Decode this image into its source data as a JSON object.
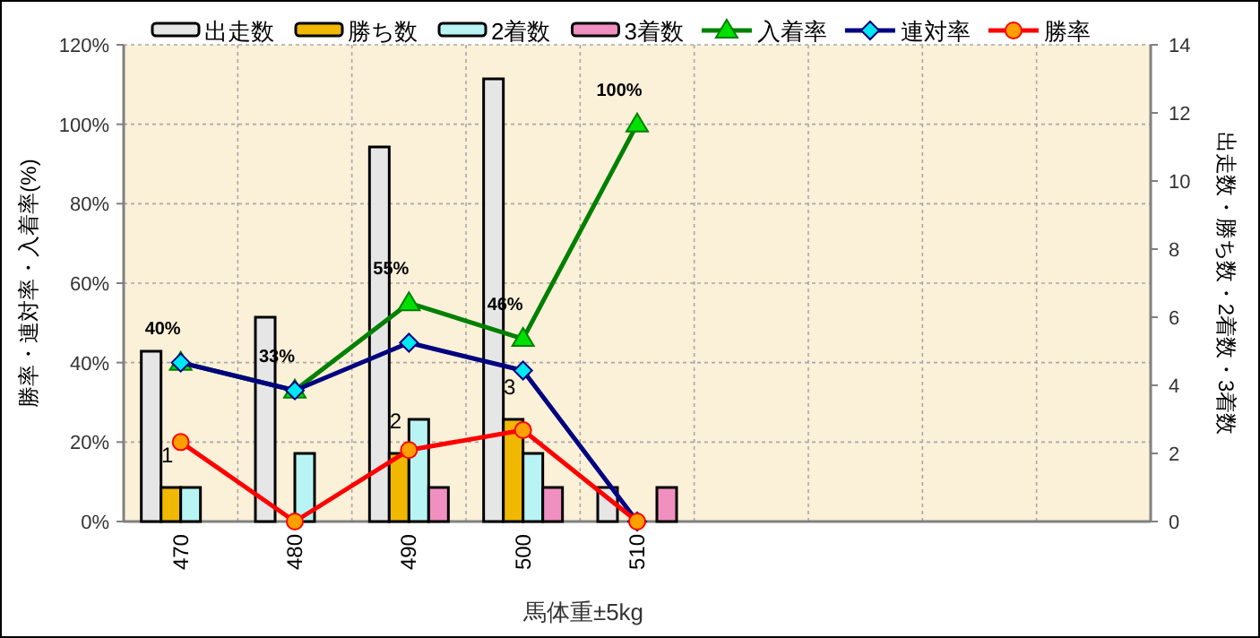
{
  "chart_data": {
    "type": "bar",
    "xlabel": "馬体重±5kg",
    "ylabel": "勝率・連対率・入着率(%)",
    "y2label": "出走数・勝ち数・2着数・3着数",
    "categories": [
      "470",
      "480",
      "490",
      "500",
      "510",
      null,
      null,
      null,
      null
    ],
    "ylim": [
      0,
      120
    ],
    "yticks": [
      {
        "value": 0,
        "label": "0%"
      },
      {
        "value": 20,
        "label": "20%"
      },
      {
        "value": 40,
        "label": "40%"
      },
      {
        "value": 60,
        "label": "60%"
      },
      {
        "value": 80,
        "label": "80%"
      },
      {
        "value": 100,
        "label": "100%"
      },
      {
        "value": 120,
        "label": "120%"
      }
    ],
    "y2lim": [
      0,
      14
    ],
    "y2ticks": [
      0,
      2,
      4,
      6,
      8,
      10,
      12,
      14
    ],
    "grid": true,
    "legend": "top",
    "series": [
      {
        "name": "出走数",
        "axis": "y2",
        "color": "#e6e6e6",
        "values": [
          5,
          6,
          11,
          13,
          1,
          null,
          null,
          null,
          null
        ]
      },
      {
        "name": "勝ち数",
        "axis": "y2",
        "color": "#f0b800",
        "values": [
          1,
          0,
          2,
          3,
          0,
          null,
          null,
          null,
          null
        ],
        "value_labels": [
          "1",
          null,
          "2",
          "3",
          null,
          null,
          null,
          null,
          null
        ]
      },
      {
        "name": "2着数",
        "axis": "y2",
        "color": "#b8f4f4",
        "values": [
          1,
          2,
          3,
          2,
          0,
          null,
          null,
          null,
          null
        ]
      },
      {
        "name": "3着数",
        "axis": "y2",
        "color": "#f090c0",
        "values": [
          0,
          0,
          1,
          1,
          1,
          null,
          null,
          null,
          null
        ]
      },
      {
        "name": "入着率",
        "type": "line",
        "color": "#008000",
        "marker": "triangle",
        "values": [
          40,
          33,
          55,
          46,
          100,
          null,
          null,
          null,
          null
        ],
        "value_labels": [
          "40%",
          "33%",
          "55%",
          "46%",
          "100%",
          null,
          null,
          null,
          null
        ]
      },
      {
        "name": "連対率",
        "type": "line",
        "color": "#000080",
        "marker": "diamond",
        "values": [
          40,
          33,
          45,
          38,
          0,
          null,
          null,
          null,
          null
        ]
      },
      {
        "name": "勝率",
        "type": "line",
        "color": "#ff0000",
        "marker": "circle",
        "values": [
          20,
          0,
          18,
          23,
          0,
          null,
          null,
          null,
          null
        ]
      }
    ]
  }
}
